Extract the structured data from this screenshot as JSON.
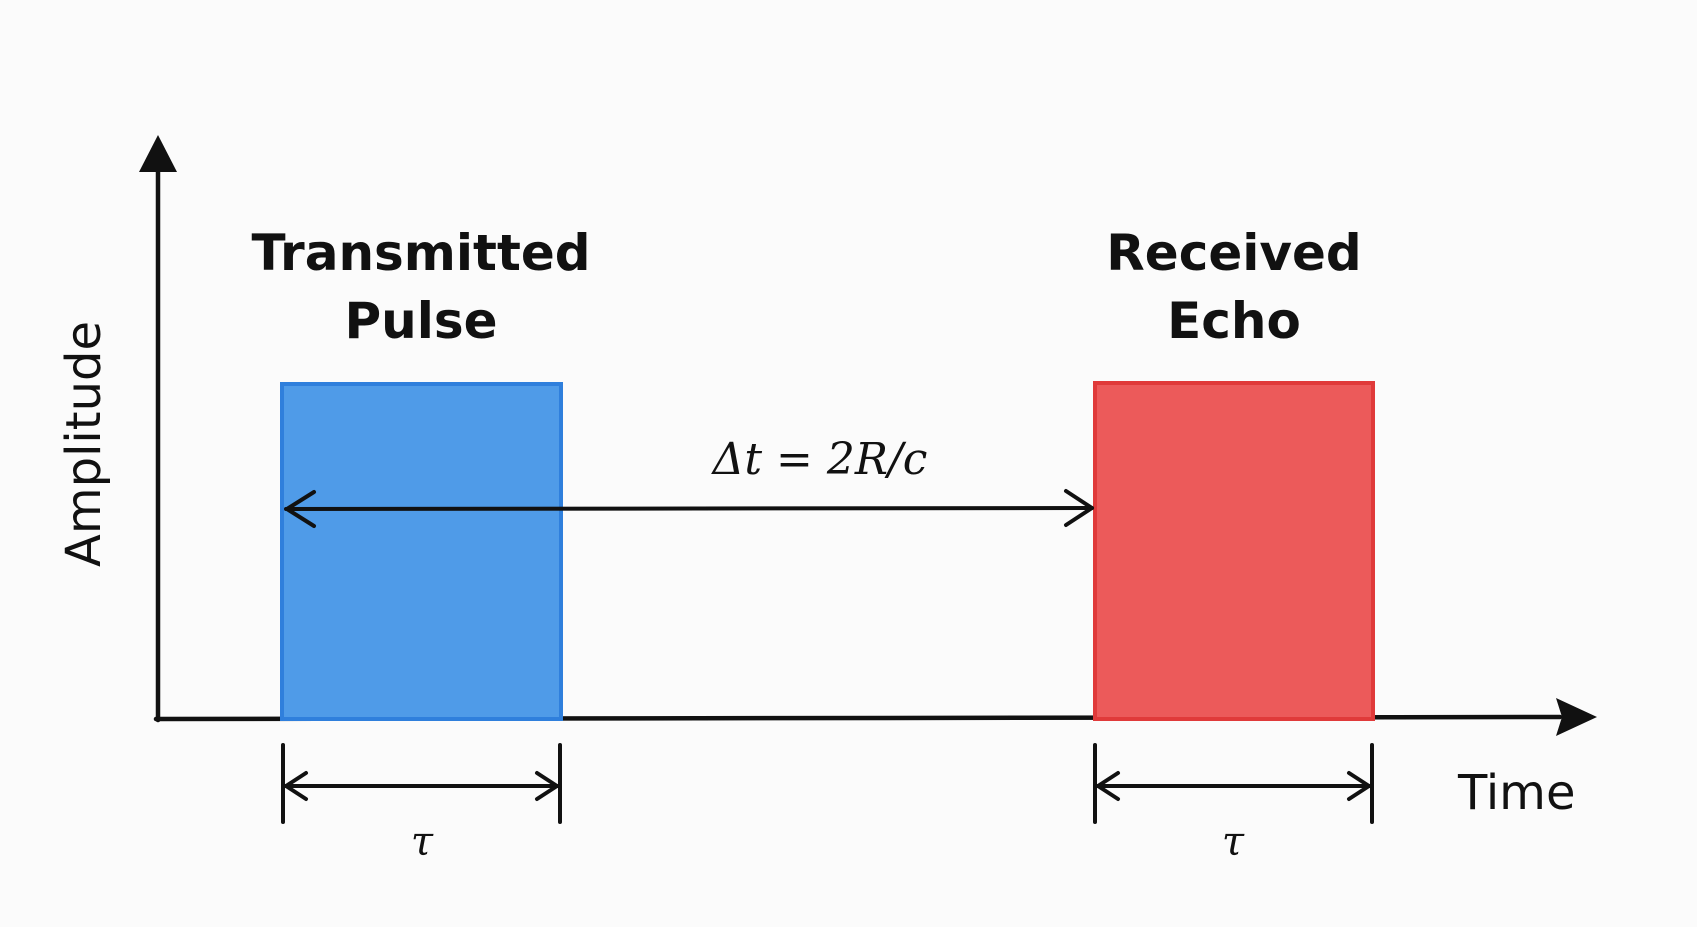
{
  "axes": {
    "y_label": "Amplitude",
    "x_label": "Time"
  },
  "pulses": {
    "transmitted": {
      "label_line1": "Transmitted",
      "label_line2": "Pulse",
      "color": "#4f9be8",
      "edge_color": "#2f7fdc",
      "width_label": "τ"
    },
    "received": {
      "label_line1": "Received",
      "label_line2": "Echo",
      "color": "#ec5a5a",
      "edge_color": "#e03a3a",
      "width_label": "τ"
    }
  },
  "delay": {
    "label": "Δt = 2R/c"
  }
}
